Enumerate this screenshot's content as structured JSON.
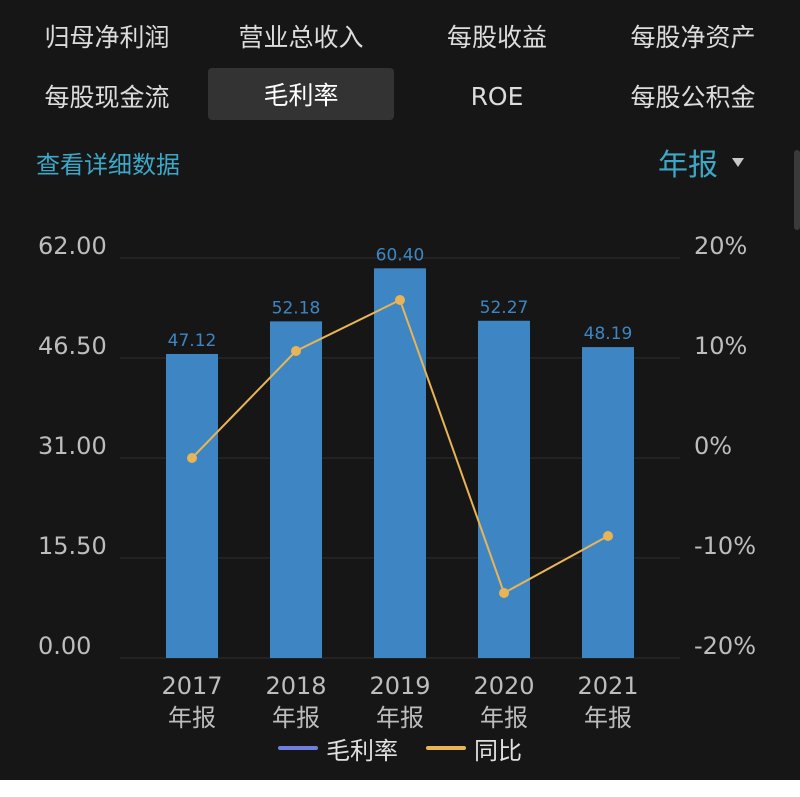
{
  "tabs": [
    {
      "label": "归母净利润",
      "active": false
    },
    {
      "label": "营业总收入",
      "active": false
    },
    {
      "label": "每股收益",
      "active": false
    },
    {
      "label": "每股净资产",
      "active": false
    },
    {
      "label": "每股现金流",
      "active": false
    },
    {
      "label": "毛利率",
      "active": true
    },
    {
      "label": "ROE",
      "active": false
    },
    {
      "label": "每股公积金",
      "active": false
    }
  ],
  "detail_link": "查看详细数据",
  "period_selector": {
    "value": "年报",
    "icon": "caret-down-icon"
  },
  "colors": {
    "bar": "#3d86c3",
    "line": "#e8b455",
    "legend_bar": "#6f7fe0",
    "accent": "#3ca7c6"
  },
  "chart_data": {
    "type": "bar",
    "categories": [
      "2017\n年报",
      "2018\n年报",
      "2019\n年报",
      "2020\n年报",
      "2021\n年报"
    ],
    "series": [
      {
        "name": "毛利率",
        "type": "bar",
        "axis": "left",
        "values": [
          47.12,
          52.18,
          60.4,
          52.27,
          48.19
        ]
      },
      {
        "name": "同比",
        "type": "line",
        "axis": "right",
        "values": [
          0.0,
          10.7,
          15.8,
          -13.5,
          -7.8
        ]
      }
    ],
    "data_labels": [
      "47.12",
      "52.18",
      "60.40",
      "52.27",
      "48.19"
    ],
    "y_left": {
      "ticks": [
        "62.00",
        "46.50",
        "31.00",
        "15.50",
        "0.00"
      ],
      "range": [
        0,
        62
      ]
    },
    "y_right": {
      "ticks": [
        "20%",
        "10%",
        "0%",
        "-10%",
        "-20%"
      ],
      "range": [
        -20,
        20
      ]
    },
    "grid": true,
    "legend_position": "bottom"
  }
}
